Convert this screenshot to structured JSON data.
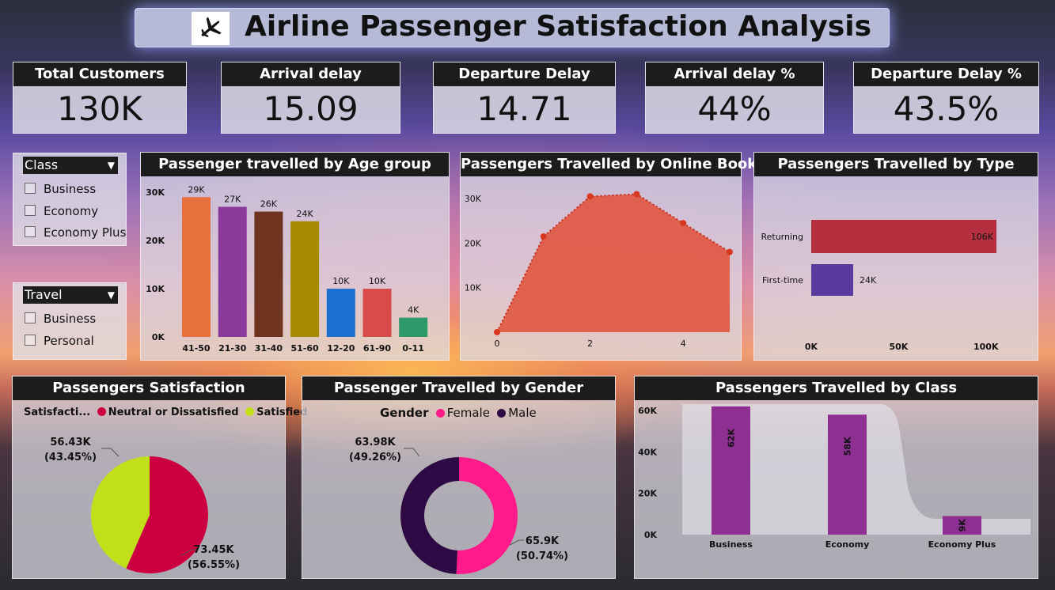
{
  "header": {
    "title": "Airline Passenger Satisfaction Analysis",
    "icon": "airplane-icon"
  },
  "kpis": [
    {
      "label": "Total Customers",
      "value": "130K"
    },
    {
      "label": "Arrival delay",
      "value": "15.09"
    },
    {
      "label": "Departure Delay",
      "value": "14.71"
    },
    {
      "label": "Arrival delay %",
      "value": "44%"
    },
    {
      "label": "Departure Delay %",
      "value": "43.5%"
    }
  ],
  "slicers": {
    "class": {
      "label": "Class",
      "options": [
        "Business",
        "Economy",
        "Economy Plus"
      ]
    },
    "travel": {
      "label": "Travel",
      "options": [
        "Business",
        "Personal"
      ]
    }
  },
  "chart_data": [
    {
      "id": "age",
      "type": "bar",
      "title": "Passenger travelled by Age group",
      "categories": [
        "41-50",
        "21-30",
        "31-40",
        "51-60",
        "12-20",
        "61-90",
        "0-11"
      ],
      "values": [
        29000,
        27000,
        26000,
        24000,
        10000,
        10000,
        4000
      ],
      "data_labels": [
        "29K",
        "27K",
        "26K",
        "24K",
        "10K",
        "10K",
        "4K"
      ],
      "colors": [
        "#e8703a",
        "#8a3a9a",
        "#6e3420",
        "#a68a00",
        "#1b6fcf",
        "#d94a4a",
        "#2e9a6a"
      ],
      "yticks": [
        "0K",
        "10K",
        "20K",
        "30K"
      ],
      "ylim": [
        0,
        32000
      ]
    },
    {
      "id": "online",
      "type": "area",
      "title": "Passengers Travelled by Online Booking",
      "x": [
        0,
        1,
        2,
        3,
        4,
        5
      ],
      "y": [
        0,
        21500,
        30500,
        31000,
        24500,
        18000
      ],
      "xticks": [
        "0",
        "2",
        "4"
      ],
      "yticks": [
        "10K",
        "20K",
        "30K"
      ],
      "ylim": [
        0,
        35000
      ],
      "color": "#e0553f"
    },
    {
      "id": "type",
      "type": "bar",
      "orientation": "horizontal",
      "title": "Passengers Travelled by Type",
      "categories": [
        "Returning",
        "First-time"
      ],
      "values": [
        106000,
        24000
      ],
      "data_labels": [
        "106K",
        "24K"
      ],
      "colors": [
        "#b5303e",
        "#5b3aa0"
      ],
      "xticks": [
        "0K",
        "50K",
        "100K"
      ],
      "xlim": [
        0,
        106000
      ]
    },
    {
      "id": "satisfaction",
      "type": "pie",
      "title": "Passengers Satisfaction",
      "legend_title": "Satisfacti...",
      "categories": [
        "Neutral or Dissatisfied",
        "Satisfied"
      ],
      "values": [
        73450,
        56430
      ],
      "data_labels": [
        "73.45K",
        "56.43K"
      ],
      "percent_labels": [
        "(56.55%)",
        "(43.45%)"
      ],
      "colors": [
        "#cc0040",
        "#c2e01a"
      ]
    },
    {
      "id": "gender",
      "type": "pie",
      "subtype": "donut",
      "title": "Passenger Travelled by Gender",
      "legend_title": "Gender",
      "categories": [
        "Female",
        "Male"
      ],
      "values": [
        65900,
        63980
      ],
      "data_labels": [
        "65.9K",
        "63.98K"
      ],
      "percent_labels": [
        "(50.74%)",
        "(49.26%)"
      ],
      "colors": [
        "#ff1a8c",
        "#2e0a45"
      ]
    },
    {
      "id": "class",
      "type": "bar",
      "title": "Passengers Travelled by Class",
      "categories": [
        "Business",
        "Economy",
        "Economy Plus"
      ],
      "values": [
        62000,
        58000,
        9000
      ],
      "data_labels": [
        "62K",
        "58K",
        "9K"
      ],
      "color": "#8e2f92",
      "yticks": [
        "0K",
        "20K",
        "40K",
        "60K"
      ],
      "ylim": [
        0,
        65000
      ]
    }
  ]
}
